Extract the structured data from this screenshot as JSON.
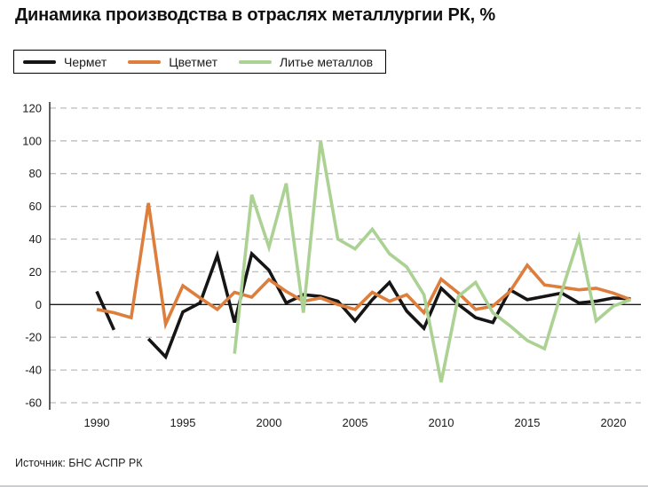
{
  "title": "Динамика производства в отраслях металлургии РК, %",
  "legend": {
    "items": [
      {
        "label": "Чермет",
        "color": "#151515"
      },
      {
        "label": "Цветмет",
        "color": "#DD7E3C"
      },
      {
        "label": "Литье металлов",
        "color": "#ABD293"
      }
    ]
  },
  "axes": {
    "y_ticks": [
      120,
      100,
      80,
      60,
      40,
      20,
      0,
      -20,
      -40,
      -60
    ],
    "x_ticks": [
      1990,
      1995,
      2000,
      2005,
      2010,
      2015,
      2020
    ]
  },
  "footer": {
    "source": "Источник: БНС АСПР РК"
  },
  "colors": {
    "gridline": "#bcbcbc",
    "zero_line": "#1a1a1a",
    "axis_line": "#1a1a1a",
    "tick_text": "#1a1a1a"
  },
  "chart_data": {
    "type": "line",
    "title": "Динамика производства в отраслях металлургии РК, %",
    "xlabel": "",
    "ylabel": "%",
    "x_range": [
      1990,
      2021
    ],
    "ylim": [
      -60,
      120
    ],
    "grid": "horizontal-dashed",
    "legend_position": "top-left",
    "note": "values are annual growth rates in percent; null = missing data",
    "series": [
      {
        "name": "Чермет",
        "color": "#151515",
        "start_year": 1990,
        "values": [
          8,
          -15.5,
          null,
          -21,
          -32,
          -4.5,
          1,
          30,
          -11,
          31,
          21,
          1,
          6,
          5,
          2,
          -10,
          3,
          13.5,
          -4,
          -14.5,
          10,
          0,
          -8,
          -11,
          9,
          3,
          5,
          7,
          1,
          2,
          4,
          3.5
        ]
      },
      {
        "name": "Цветмет",
        "color": "#DD7E3C",
        "start_year": 1990,
        "values": [
          -3,
          -5,
          -8,
          62,
          -12,
          11.5,
          4,
          -3,
          7.5,
          4.5,
          15.3,
          8,
          2,
          4,
          0,
          -3,
          7.5,
          2,
          6,
          -5,
          15.5,
          7,
          -3,
          -1,
          8,
          24,
          12,
          10.5,
          9,
          10,
          7,
          3
        ]
      },
      {
        "name": "Литье металлов",
        "color": "#ABD293",
        "start_year": 1998,
        "values": [
          -30,
          67,
          35,
          74,
          -5,
          100,
          40,
          34,
          46,
          31,
          23,
          6,
          -47.5,
          5,
          13.5,
          -5,
          -13,
          -22,
          -27,
          8,
          41,
          -10,
          -1,
          3
        ]
      }
    ]
  }
}
